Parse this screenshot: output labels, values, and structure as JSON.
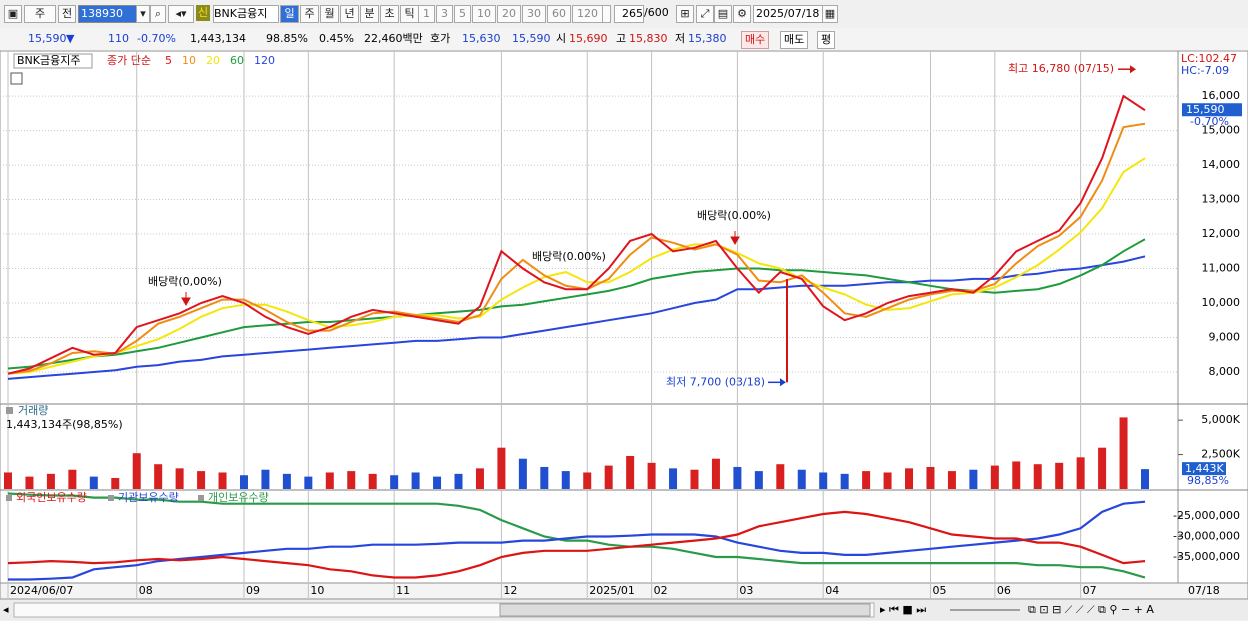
{
  "toolbar": {
    "period_prefix": "주",
    "compare": "전",
    "code": "138930",
    "name": "BNK금융지",
    "new": "신",
    "periods": [
      "일",
      "주",
      "월",
      "년",
      "분",
      "초",
      "틱"
    ],
    "intervals": [
      "1",
      "3",
      "5",
      "10",
      "20",
      "30",
      "60",
      "120"
    ],
    "count": "265",
    "max": "/600",
    "date": "2025/07/18"
  },
  "quote_bar": {
    "price": "15,590",
    "arrow": "▼",
    "change": "110",
    "change_pct": "-0.70%",
    "volume": "1,443,134",
    "volume_ratio": "98.85%",
    "turnover": "0.45%",
    "amount": "22,460백만",
    "ask_label": "호가",
    "ask": "15,630",
    "bid": "15,590",
    "open_label": "시",
    "open": "15,690",
    "high_label": "고",
    "high": "15,830",
    "low_label": "저",
    "low": "15,380",
    "buy": "매수",
    "sell": "매도",
    "avg": "평"
  },
  "chart_data": [
    {
      "type": "line",
      "name": "BNK금융지주",
      "legend_title": "종가 단순",
      "categories": [
        "2024/06/07",
        null,
        null,
        null,
        null,
        null,
        "08",
        null,
        null,
        null,
        null,
        "09",
        null,
        null,
        "10",
        null,
        null,
        null,
        "11",
        null,
        null,
        null,
        null,
        "12",
        null,
        null,
        null,
        "2025/01",
        null,
        null,
        "02",
        null,
        null,
        null,
        "03",
        null,
        null,
        null,
        "04",
        null,
        null,
        null,
        null,
        "05",
        null,
        null,
        "06",
        null,
        null,
        null,
        "07",
        null,
        null,
        null
      ],
      "series": [
        {
          "name": "5",
          "color": "#e0141e",
          "values": [
            7950,
            8100,
            8400,
            8700,
            8500,
            8550,
            9300,
            9500,
            9700,
            10000,
            10200,
            10000,
            9600,
            9300,
            9100,
            9300,
            9600,
            9800,
            9700,
            9600,
            9500,
            9400,
            9900,
            11500,
            11000,
            10600,
            10400,
            10400,
            11000,
            11800,
            12000,
            11500,
            11600,
            11800,
            11000,
            10300,
            10900,
            10700,
            9900,
            9500,
            9700,
            10000,
            10200,
            10300,
            10400,
            10300,
            10800,
            11500,
            11800,
            12100,
            12900,
            14200,
            16000,
            15590
          ]
        },
        {
          "name": "10",
          "color": "#f08c14",
          "values": [
            7950,
            8030,
            8250,
            8550,
            8600,
            8530,
            8900,
            9400,
            9600,
            9850,
            10100,
            10100,
            9800,
            9450,
            9200,
            9200,
            9450,
            9700,
            9750,
            9650,
            9550,
            9450,
            9650,
            10700,
            11250,
            10800,
            10500,
            10400,
            10700,
            11400,
            11900,
            11750,
            11550,
            11700,
            11400,
            10650,
            10600,
            10800,
            10300,
            9700,
            9600,
            9850,
            10100,
            10250,
            10350,
            10350,
            10550,
            11150,
            11650,
            11950,
            12500,
            13550,
            15100,
            15200
          ]
        },
        {
          "name": "20",
          "color": "#f5e60a",
          "values": [
            7950,
            8000,
            8150,
            8300,
            8450,
            8550,
            8750,
            8950,
            9250,
            9600,
            9850,
            9950,
            9950,
            9750,
            9500,
            9300,
            9350,
            9450,
            9600,
            9650,
            9650,
            9550,
            9600,
            10100,
            10450,
            10750,
            10900,
            10600,
            10600,
            10900,
            11300,
            11550,
            11700,
            11700,
            11450,
            11150,
            11000,
            10700,
            10450,
            10250,
            9950,
            9800,
            9850,
            10050,
            10250,
            10300,
            10450,
            10750,
            11100,
            11550,
            12050,
            12750,
            13800,
            14200
          ]
        },
        {
          "name": "60",
          "color": "#1e9b3c",
          "values": [
            8100,
            8150,
            8250,
            8350,
            8450,
            8500,
            8600,
            8700,
            8850,
            9000,
            9150,
            9300,
            9350,
            9400,
            9450,
            9450,
            9500,
            9550,
            9600,
            9650,
            9700,
            9750,
            9800,
            9900,
            9950,
            10050,
            10150,
            10250,
            10350,
            10500,
            10700,
            10800,
            10900,
            10950,
            11000,
            11000,
            10950,
            10950,
            10900,
            10850,
            10800,
            10700,
            10600,
            10500,
            10400,
            10350,
            10300,
            10350,
            10400,
            10550,
            10800,
            11100,
            11500,
            11850
          ]
        },
        {
          "name": "120",
          "color": "#2846dc",
          "values": [
            7800,
            7850,
            7900,
            7950,
            8000,
            8050,
            8150,
            8200,
            8300,
            8350,
            8450,
            8500,
            8550,
            8600,
            8650,
            8700,
            8750,
            8800,
            8850,
            8900,
            8900,
            8950,
            9000,
            9000,
            9100,
            9200,
            9300,
            9400,
            9500,
            9600,
            9700,
            9850,
            10000,
            10100,
            10400,
            10400,
            10450,
            10500,
            10500,
            10500,
            10550,
            10600,
            10600,
            10650,
            10650,
            10700,
            10700,
            10800,
            10850,
            10950,
            11000,
            11100,
            11200,
            11350
          ]
        }
      ],
      "ylim": [
        7100,
        17250
      ],
      "yticks": [
        {
          "value": 8000,
          "label": "8,000"
        },
        {
          "value": 9000,
          "label": "9,000"
        },
        {
          "value": 10000,
          "label": "10,000"
        },
        {
          "value": 11000,
          "label": "11,000"
        },
        {
          "value": 12000,
          "label": "12,000"
        },
        {
          "value": 13000,
          "label": "13,000"
        },
        {
          "value": 14000,
          "label": "14,000"
        },
        {
          "value": 15000,
          "label": "15,000"
        },
        {
          "value": 16000,
          "label": "16,000"
        }
      ],
      "grid": true,
      "last_price": {
        "value": 15590,
        "label": "15,590"
      },
      "last_change": "-0.70%",
      "lc": "LC:102.47",
      "hc": "HC:-7.09",
      "high": {
        "value": 16780,
        "label": "최고 16,780 (07/15)"
      },
      "low": {
        "value": 7700,
        "label": "최저 7,700 (03/18)"
      },
      "events": [
        "배당락(0,00%)",
        "배당락(0.00%)",
        "배당락(0.00%)"
      ]
    },
    {
      "type": "bar",
      "name": "거래량",
      "value_label": "1,443,134주(98,85%)",
      "values": [
        1200,
        900,
        1100,
        1400,
        900,
        800,
        2600,
        1800,
        1500,
        1300,
        1200,
        1000,
        1400,
        1100,
        900,
        1200,
        1300,
        1100,
        1000,
        1200,
        900,
        1100,
        1500,
        3000,
        2200,
        1600,
        1300,
        1200,
        1700,
        2400,
        1900,
        1500,
        1400,
        2200,
        1600,
        1300,
        1800,
        1400,
        1200,
        1100,
        1300,
        1200,
        1500,
        1600,
        1300,
        1400,
        1700,
        2000,
        1800,
        1900,
        2300,
        3000,
        5200,
        1443
      ],
      "up_color": "#d82020",
      "down_color": "#2050d0",
      "ylim": [
        0,
        6100
      ],
      "yticks": [
        {
          "value": 2500,
          "label": "2,500K"
        },
        {
          "value": 5000,
          "label": "5,000K"
        }
      ],
      "last_value": {
        "value": 1443,
        "label": "1,443K"
      },
      "last_ratio": "98,85%"
    },
    {
      "type": "line",
      "series": [
        {
          "name": "외국인보유수량",
          "color": "#dc1414",
          "values": [
            -36500000,
            -36300000,
            -36000000,
            -36200000,
            -36500000,
            -36300000,
            -35800000,
            -35500000,
            -35800000,
            -35500000,
            -35000000,
            -35500000,
            -36000000,
            -36500000,
            -37000000,
            -38000000,
            -38500000,
            -39500000,
            -40000000,
            -40000000,
            -39500000,
            -38500000,
            -37000000,
            -35000000,
            -34000000,
            -33500000,
            -33500000,
            -33500000,
            -33000000,
            -32500000,
            -32000000,
            -31500000,
            -31000000,
            -30500000,
            -29500000,
            -27500000,
            -26500000,
            -25500000,
            -24500000,
            -24000000,
            -24500000,
            -25500000,
            -26500000,
            -28000000,
            -29500000,
            -30000000,
            -30500000,
            -30500000,
            -31500000,
            -31500000,
            -32500000,
            -34500000,
            -36500000,
            -36000000
          ]
        },
        {
          "name": "기관보유수량",
          "color": "#2846dc",
          "values": [
            -40500000,
            -40500000,
            -40300000,
            -40000000,
            -38000000,
            -37500000,
            -37000000,
            -36000000,
            -35500000,
            -35000000,
            -34500000,
            -34000000,
            -33500000,
            -33000000,
            -33000000,
            -32500000,
            -32500000,
            -32000000,
            -32000000,
            -32000000,
            -31800000,
            -31500000,
            -31500000,
            -31500000,
            -31000000,
            -31000000,
            -30500000,
            -30000000,
            -30000000,
            -29800000,
            -29500000,
            -29500000,
            -29500000,
            -30000000,
            -31500000,
            -32500000,
            -33500000,
            -34000000,
            -34000000,
            -34500000,
            -34500000,
            -34000000,
            -33500000,
            -33000000,
            -32500000,
            -32000000,
            -31500000,
            -31000000,
            -30500000,
            -29500000,
            -28000000,
            -24000000,
            -22000000,
            -21500000
          ]
        },
        {
          "name": "개인보유수량",
          "color": "#2a9a4a",
          "values": [
            -19500000,
            -19800000,
            -20000000,
            -20000000,
            -20500000,
            -20500000,
            -21000000,
            -21000000,
            -21500000,
            -21500000,
            -22000000,
            -22000000,
            -22000000,
            -22000000,
            -22000000,
            -22000000,
            -22000000,
            -22000000,
            -22000000,
            -22000000,
            -22000000,
            -22500000,
            -23500000,
            -26000000,
            -28000000,
            -30000000,
            -31000000,
            -31000000,
            -32000000,
            -32500000,
            -32500000,
            -33000000,
            -34000000,
            -35000000,
            -35000000,
            -35500000,
            -36000000,
            -36500000,
            -36500000,
            -36500000,
            -36500000,
            -36500000,
            -36500000,
            -36500000,
            -36500000,
            -36500000,
            -36500000,
            -36500000,
            -37000000,
            -37000000,
            -37500000,
            -37500000,
            -38500000,
            -40000000
          ]
        }
      ],
      "ylim": [
        -41100000,
        -18900000
      ],
      "yticks": [
        {
          "value": -35000000,
          "label": "-35,000,000"
        },
        {
          "value": -30000000,
          "label": "-30,000,000"
        },
        {
          "value": -25000000,
          "label": "-25,000,000"
        }
      ],
      "x_end_label": "07/18"
    }
  ]
}
